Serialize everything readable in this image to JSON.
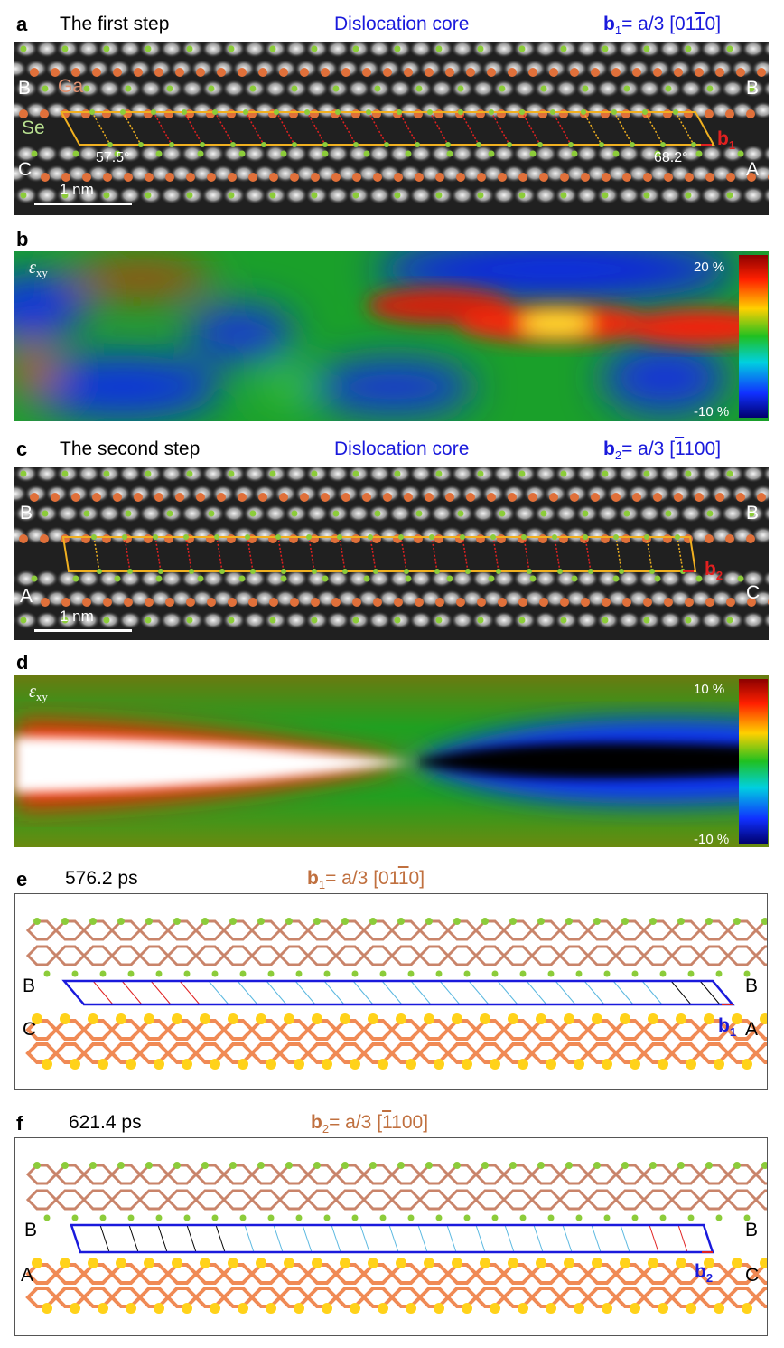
{
  "panel_a": {
    "label": "a",
    "title": "The first step",
    "core_label": "Dislocation core",
    "burgers_b": "b",
    "burgers_sub": "1",
    "burgers_rest": "= a/3 [01",
    "burgers_bar": "1",
    "burgers_end": "0]",
    "stack_left_top": "B",
    "stack_left_bottom": "C",
    "stack_right_top": "B",
    "stack_right_bottom": "A",
    "atom_ga": "Ga",
    "atom_se": "Se",
    "angle_left": "57.5°",
    "angle_right": "68.2°",
    "vector_b": "b",
    "vector_sub": "1",
    "scalebar": "1 nm"
  },
  "panel_b": {
    "label": "b",
    "strain_symbol": "ε",
    "strain_sub": "xy",
    "max": "20 %",
    "min": "-10 %"
  },
  "panel_c": {
    "label": "c",
    "title": "The second step",
    "core_label": "Dislocation core",
    "burgers_b": "b",
    "burgers_sub": "2",
    "burgers_rest": "= a/3 [",
    "burgers_bar": "1",
    "burgers_end": "100]",
    "stack_left_top": "B",
    "stack_left_bottom": "A",
    "stack_right_top": "B",
    "stack_right_bottom": "C",
    "vector_b": "b",
    "vector_sub": "2",
    "scalebar": "1 nm"
  },
  "panel_d": {
    "label": "d",
    "strain_symbol": "ε",
    "strain_sub": "xy",
    "max": "10 %",
    "min": "-10 %"
  },
  "panel_e": {
    "label": "e",
    "time": "576.2 ps",
    "burgers_b": "b",
    "burgers_sub": "1",
    "burgers_rest": "= a/3 [01",
    "burgers_bar": "1",
    "burgers_end": "0]",
    "stack_left_top": "B",
    "stack_left_bottom": "C",
    "stack_right_top": "B",
    "stack_right_bottom": "A",
    "vector_b": "b",
    "vector_sub": "1"
  },
  "panel_f": {
    "label": "f",
    "time": "621.4 ps",
    "burgers_b": "b",
    "burgers_sub": "2",
    "burgers_rest": "= a/3 [",
    "burgers_bar": "1",
    "burgers_end": "100]",
    "stack_left_top": "B",
    "stack_left_bottom": "A",
    "stack_right_top": "B",
    "stack_right_bottom": "C",
    "vector_b": "b",
    "vector_sub": "2"
  },
  "colors": {
    "ga_atom": "#e0703a",
    "se_atom": "#8ccc3a",
    "circuit": "#f0b020",
    "bond_red": "#e02020",
    "circuit_md": "#1a1adc",
    "bond_md_blue": "#5ab8e0",
    "md_bond_top": "#c9846a",
    "md_bond_bottom": "#f08a55",
    "md_atom_bottom": "#ffd21a"
  }
}
